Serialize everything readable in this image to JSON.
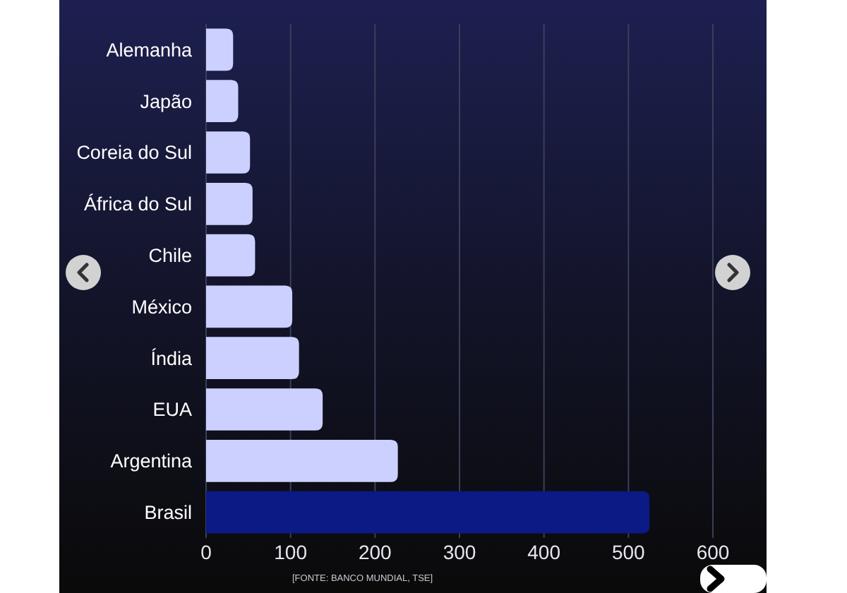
{
  "chart_data": {
    "type": "bar",
    "orientation": "horizontal",
    "categories": [
      "Alemanha",
      "Japão",
      "Coreia do Sul",
      "África do Sul",
      "Chile",
      "México",
      "Índia",
      "EUA",
      "Argentina",
      "Brasil"
    ],
    "values": [
      32,
      38,
      52,
      55,
      58,
      102,
      110,
      138,
      227,
      525
    ],
    "colors": [
      "#ccd0ff",
      "#ccd0ff",
      "#ccd0ff",
      "#ccd0ff",
      "#ccd0ff",
      "#ccd0ff",
      "#ccd0ff",
      "#ccd0ff",
      "#ccd0ff",
      "#0b1a85"
    ],
    "xlim": [
      0,
      600
    ],
    "xticks": [
      0,
      100,
      200,
      300,
      400,
      500,
      600
    ],
    "grid": "x",
    "annotations": [
      "[FONTE: BANCO MUNDIAL, TSE]"
    ]
  }
}
